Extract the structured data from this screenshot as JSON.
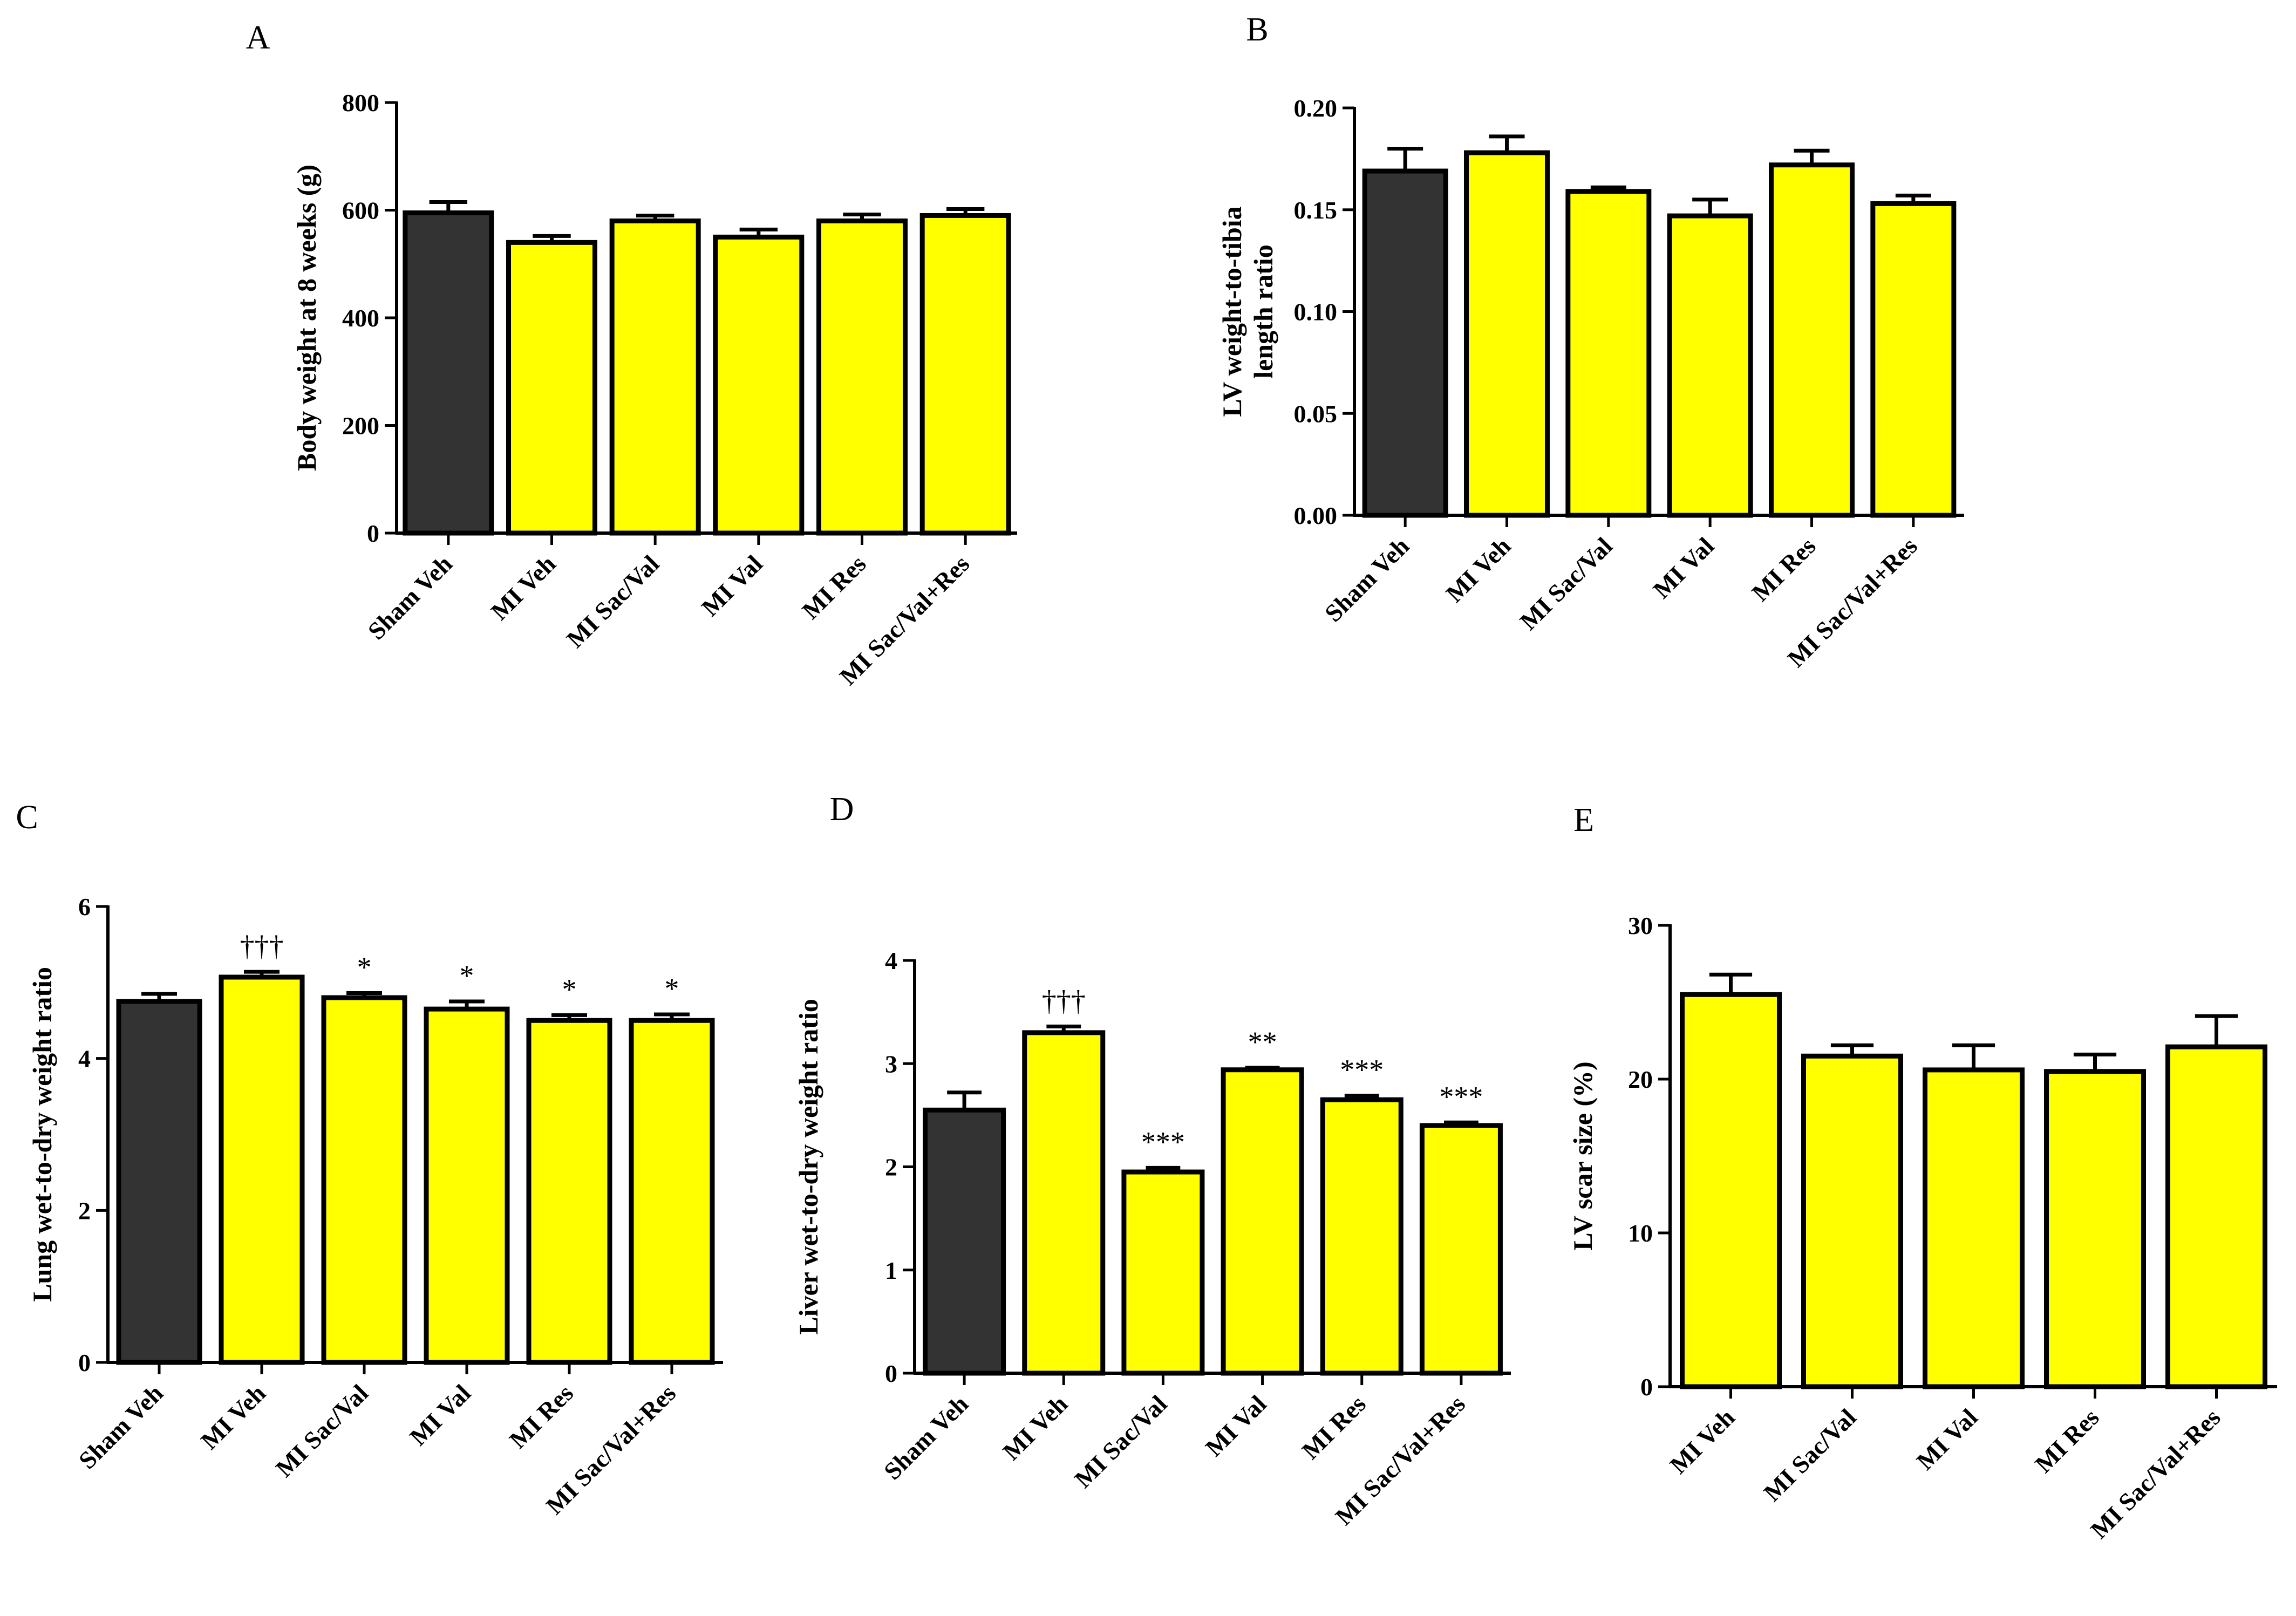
{
  "chart_data": [
    {
      "type": "bar",
      "panel": "A",
      "title": "",
      "xlabel": "",
      "ylabel": "Body weight at 8 weeks (g)",
      "ylim": [
        0,
        800
      ],
      "yticks": [
        "0",
        "200",
        "400",
        "600",
        "800"
      ],
      "grid": false,
      "categories": [
        "Sham Veh",
        "MI Veh",
        "MI Sac/Val",
        "MI Val",
        "MI Res",
        "MI Sac/Val+Res"
      ],
      "values": [
        595,
        540,
        580,
        550,
        580,
        590
      ],
      "errors": [
        20,
        12,
        10,
        14,
        12,
        12
      ],
      "annotations": [
        "",
        "",
        "",
        "",
        "",
        ""
      ],
      "bar_colors": [
        "#333333",
        "#ffff00",
        "#ffff00",
        "#ffff00",
        "#ffff00",
        "#ffff00"
      ]
    },
    {
      "type": "bar",
      "panel": "B",
      "title": "",
      "xlabel": "",
      "ylabel": "LV weight-to-tibia length ratio",
      "ylabel_lines": [
        "LV weight-to-tibia",
        "length ratio"
      ],
      "ylim": [
        0,
        0.2
      ],
      "yticks": [
        "0.00",
        "0.05",
        "0.10",
        "0.15",
        "0.20"
      ],
      "grid": false,
      "categories": [
        "Sham Veh",
        "MI Veh",
        "MI Sac/Val",
        "MI Val",
        "MI Res",
        "MI Sac/Val+Res"
      ],
      "values": [
        0.169,
        0.178,
        0.159,
        0.147,
        0.172,
        0.153
      ],
      "errors": [
        0.011,
        0.008,
        0.002,
        0.008,
        0.007,
        0.004
      ],
      "annotations": [
        "",
        "",
        "",
        "",
        "",
        ""
      ],
      "bar_colors": [
        "#333333",
        "#ffff00",
        "#ffff00",
        "#ffff00",
        "#ffff00",
        "#ffff00"
      ]
    },
    {
      "type": "bar",
      "panel": "C",
      "title": "",
      "xlabel": "",
      "ylabel": "Lung wet-to-dry weight ratio",
      "ylim": [
        0,
        6
      ],
      "yticks": [
        "0",
        "2",
        "4",
        "6"
      ],
      "grid": false,
      "categories": [
        "Sham Veh",
        "MI Veh",
        "MI Sac/Val",
        "MI Val",
        "MI Res",
        "MI Sac/Val+Res"
      ],
      "values": [
        4.75,
        5.07,
        4.8,
        4.65,
        4.5,
        4.5
      ],
      "errors": [
        0.1,
        0.07,
        0.06,
        0.1,
        0.07,
        0.08
      ],
      "annotations": [
        "",
        "†††",
        "*",
        "*",
        "*",
        "*"
      ],
      "bar_colors": [
        "#333333",
        "#ffff00",
        "#ffff00",
        "#ffff00",
        "#ffff00",
        "#ffff00"
      ]
    },
    {
      "type": "bar",
      "panel": "D",
      "title": "",
      "xlabel": "",
      "ylabel": "Liver wet-to-dry weight ratio",
      "ylim": [
        0,
        4
      ],
      "yticks": [
        "0",
        "1",
        "2",
        "3",
        "4"
      ],
      "grid": false,
      "categories": [
        "Sham Veh",
        "MI Veh",
        "MI Sac/Val",
        "MI Val",
        "MI Res",
        "MI Sac/Val+Res"
      ],
      "values": [
        2.55,
        3.3,
        1.95,
        2.94,
        2.65,
        2.4
      ],
      "errors": [
        0.17,
        0.06,
        0.04,
        0.02,
        0.04,
        0.03
      ],
      "annotations": [
        "",
        "†††",
        "***",
        "**",
        "***",
        "***"
      ],
      "bar_colors": [
        "#333333",
        "#ffff00",
        "#ffff00",
        "#ffff00",
        "#ffff00",
        "#ffff00"
      ]
    },
    {
      "type": "bar",
      "panel": "E",
      "title": "",
      "xlabel": "",
      "ylabel": "LV scar size (%)",
      "ylim": [
        0,
        30
      ],
      "yticks": [
        "0",
        "10",
        "20",
        "30"
      ],
      "grid": false,
      "categories": [
        "MI Veh",
        "MI Sac/Val",
        "MI Val",
        "MI Res",
        "MI Sac/Val+Res"
      ],
      "values": [
        25.5,
        21.5,
        20.6,
        20.5,
        22.1
      ],
      "errors": [
        1.3,
        0.7,
        1.6,
        1.1,
        2.0
      ],
      "annotations": [
        "",
        "",
        "",
        "",
        ""
      ],
      "bar_colors": [
        "#ffff00",
        "#ffff00",
        "#ffff00",
        "#ffff00",
        "#ffff00"
      ]
    }
  ]
}
